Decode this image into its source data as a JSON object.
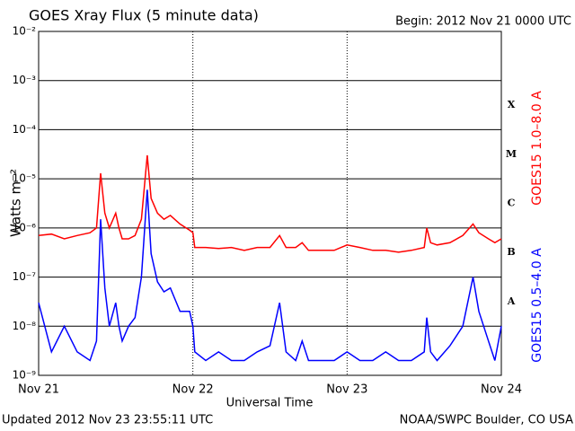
{
  "chart_data": {
    "type": "line",
    "title": "GOES Xray Flux (5 minute data)",
    "subtitle": "Begin:  2012 Nov 21 0000 UTC",
    "y_label": "Watts m⁻²",
    "x_label": "Universal Time",
    "footer_left": "Updated 2012 Nov 23 23:55:11 UTC",
    "footer_right": "NOAA/SWPC Boulder, CO USA",
    "flare_classes": [
      "A",
      "B",
      "C",
      "M",
      "X"
    ],
    "log_y": true,
    "grid": true,
    "xlim": [
      0,
      72
    ],
    "xticks": [
      {
        "value": 0,
        "label": "Nov 21"
      },
      {
        "value": 24,
        "label": "Nov 22"
      },
      {
        "value": 48,
        "label": "Nov 23"
      },
      {
        "value": 72,
        "label": "Nov 24"
      }
    ],
    "ylim": [
      1e-09,
      0.01
    ],
    "yticks": [
      {
        "value": 1e-09,
        "label": "10⁻⁹"
      },
      {
        "value": 1e-08,
        "label": "10⁻⁸"
      },
      {
        "value": 1e-07,
        "label": "10⁻⁷"
      },
      {
        "value": 1e-06,
        "label": "10⁻⁶"
      },
      {
        "value": 1e-05,
        "label": "10⁻⁵"
      },
      {
        "value": 0.0001,
        "label": "10⁻⁴"
      },
      {
        "value": 0.001,
        "label": "10⁻³"
      },
      {
        "value": 0.01,
        "label": "10⁻²"
      }
    ],
    "x": [
      0,
      2,
      4,
      6,
      8,
      9,
      9.65,
      10.3,
      11,
      12,
      12.5,
      13,
      14,
      15,
      16,
      16.9,
      17.5,
      18.5,
      19.5,
      20.5,
      22,
      23.5,
      24,
      24.3,
      26,
      28,
      30,
      32,
      34,
      36,
      37.5,
      38.5,
      40,
      41,
      42,
      44,
      46,
      48,
      50,
      52,
      54,
      56,
      58,
      60,
      60.4,
      61,
      62,
      64,
      66,
      67.6,
      68.5,
      70,
      71,
      72
    ],
    "series": [
      {
        "name": "GOES15 1.0–8.0 A",
        "color": "#ff0000",
        "values": [
          7e-07,
          7.5e-07,
          6e-07,
          7e-07,
          8e-07,
          1e-06,
          1.3e-05,
          2e-06,
          1e-06,
          2e-06,
          1e-06,
          6e-07,
          6e-07,
          7e-07,
          1.5e-06,
          3e-05,
          4e-06,
          2e-06,
          1.5e-06,
          1.8e-06,
          1.2e-06,
          9e-07,
          8e-07,
          4e-07,
          4e-07,
          3.8e-07,
          4e-07,
          3.5e-07,
          4e-07,
          4e-07,
          7e-07,
          4e-07,
          4e-07,
          5e-07,
          3.5e-07,
          3.5e-07,
          3.5e-07,
          4.5e-07,
          4e-07,
          3.5e-07,
          3.5e-07,
          3.2e-07,
          3.5e-07,
          4e-07,
          1e-06,
          5e-07,
          4.5e-07,
          5e-07,
          7e-07,
          1.2e-06,
          8e-07,
          6e-07,
          5e-07,
          6e-07
        ]
      },
      {
        "name": "GOES15 0.5–4.0 A",
        "color": "#0000ff",
        "values": [
          3e-08,
          3e-09,
          1e-08,
          3e-09,
          2e-09,
          5e-09,
          1.5e-06,
          6e-08,
          1e-08,
          3e-08,
          1e-08,
          5e-09,
          1e-08,
          1.5e-08,
          1e-07,
          6e-06,
          3e-07,
          8e-08,
          5e-08,
          6e-08,
          2e-08,
          2e-08,
          1e-08,
          3e-09,
          2e-09,
          3e-09,
          2e-09,
          2e-09,
          3e-09,
          4e-09,
          3e-08,
          3e-09,
          2e-09,
          5e-09,
          2e-09,
          2e-09,
          2e-09,
          3e-09,
          2e-09,
          2e-09,
          3e-09,
          2e-09,
          2e-09,
          3e-09,
          1.5e-08,
          3e-09,
          2e-09,
          4e-09,
          1e-08,
          1e-07,
          2e-08,
          5e-09,
          2e-09,
          1e-08
        ]
      }
    ]
  }
}
